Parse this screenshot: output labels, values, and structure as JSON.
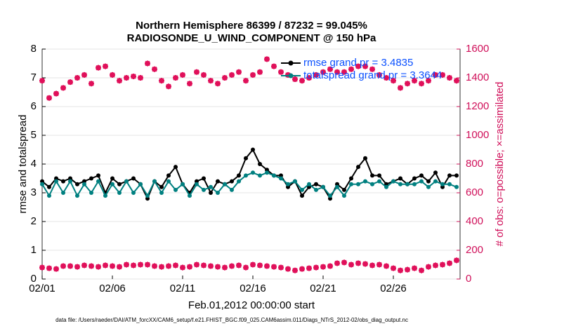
{
  "chart_data": {
    "type": "line",
    "title": "Northern Hemisphere 86399 / 87232 = 99.045%",
    "subtitle": "RADIOSONDE_U_WIND_COMPONENT @ 150 hPa",
    "x_label": "Feb.01,2012 00:00:00 start",
    "y_label": "rmse and totalspread",
    "y2_label": "# of obs: o=possible; ×=assimilated",
    "footer": "data file: /Users/raeder/DAI/ATM_forcXX/CAM6_setup/f.e21.FHIST_BGC.f09_025.CAM6assim.011/Diags_NTrS_2012-02/obs_diag_output.nc",
    "x": [
      0,
      0.5,
      1,
      1.5,
      2,
      2.5,
      3,
      3.5,
      4,
      4.5,
      5,
      5.5,
      6,
      6.5,
      7,
      7.5,
      8,
      8.5,
      9,
      9.5,
      10,
      10.5,
      11,
      11.5,
      12,
      12.5,
      13,
      13.5,
      14,
      14.5,
      15,
      15.5,
      16,
      16.5,
      17,
      17.5,
      18,
      18.5,
      19,
      19.5,
      20,
      20.5,
      21,
      21.5,
      22,
      22.5,
      23,
      23.5,
      24,
      24.5,
      25,
      25.5,
      26,
      26.5,
      27,
      27.5,
      28,
      28.5,
      29,
      29.5
    ],
    "xlim": [
      0,
      29.75
    ],
    "xticks": [
      {
        "value": 0,
        "label": "02/01"
      },
      {
        "value": 5,
        "label": "02/06"
      },
      {
        "value": 10,
        "label": "02/11"
      },
      {
        "value": 15,
        "label": "02/16"
      },
      {
        "value": 20,
        "label": "02/21"
      },
      {
        "value": 25,
        "label": "02/26"
      }
    ],
    "ylim": [
      0,
      8
    ],
    "yticks": [
      0,
      1,
      2,
      3,
      4,
      5,
      6,
      7,
      8
    ],
    "y2lim": [
      0,
      1600
    ],
    "y2ticks": [
      0,
      200,
      400,
      600,
      800,
      1000,
      1200,
      1400,
      1600
    ],
    "grid": true,
    "legend": "upper right",
    "series": [
      {
        "name": "rmse grand pr = 3.4835",
        "color": "#000000",
        "values": [
          3.4,
          3.2,
          3.5,
          3.4,
          3.5,
          3.3,
          3.4,
          3.5,
          3.6,
          3.0,
          3.5,
          3.3,
          3.4,
          3.5,
          3.3,
          2.8,
          3.4,
          3.2,
          3.6,
          3.9,
          3.3,
          3.0,
          3.4,
          3.5,
          3.0,
          3.4,
          3.3,
          3.4,
          3.6,
          4.2,
          4.5,
          4.0,
          3.8,
          3.6,
          3.6,
          3.2,
          3.4,
          2.9,
          3.2,
          3.3,
          3.2,
          2.8,
          3.3,
          3.1,
          3.5,
          3.9,
          4.2,
          3.6,
          3.6,
          3.3,
          3.4,
          3.5,
          3.3,
          3.5,
          3.6,
          3.4,
          3.7,
          3.2,
          3.6,
          3.6
        ]
      },
      {
        "name": "totalspread grand pr = 3.3644",
        "color": "#008080",
        "values": [
          3.3,
          2.9,
          3.4,
          3.0,
          3.4,
          2.9,
          3.3,
          3.0,
          3.4,
          2.9,
          3.3,
          3.0,
          3.4,
          3.0,
          3.3,
          2.9,
          3.4,
          3.0,
          3.4,
          3.1,
          3.3,
          2.9,
          3.3,
          3.1,
          3.2,
          3.0,
          3.3,
          3.1,
          3.4,
          3.6,
          3.7,
          3.6,
          3.7,
          3.6,
          3.5,
          3.3,
          3.4,
          3.1,
          3.3,
          3.1,
          3.2,
          2.9,
          3.2,
          2.9,
          3.3,
          3.3,
          3.4,
          3.3,
          3.4,
          3.2,
          3.4,
          3.3,
          3.3,
          3.3,
          3.4,
          3.2,
          3.4,
          3.3,
          3.3,
          3.2
        ]
      },
      {
        "axis": "y2",
        "color": "#e0105a",
        "values": [
          1380,
          1260,
          1290,
          1330,
          1370,
          1400,
          1420,
          1360,
          1470,
          1480,
          1420,
          1380,
          1400,
          1410,
          1400,
          1500,
          1460,
          1380,
          1340,
          1400,
          1420,
          1360,
          1440,
          1420,
          1380,
          1360,
          1400,
          1420,
          1440,
          1380,
          1420,
          1440,
          1530,
          1480,
          1440,
          1420,
          1390,
          1380,
          1400,
          1420,
          1440,
          1460,
          1440,
          1440,
          1460,
          1480,
          1480,
          1460,
          1420,
          1400,
          1380,
          1330,
          1360,
          1380,
          1360,
          1380,
          1420,
          1420,
          1400,
          1380
        ]
      },
      {
        "axis": "y2",
        "color": "#e0105a",
        "values": [
          80,
          75,
          70,
          90,
          90,
          85,
          95,
          90,
          85,
          95,
          90,
          85,
          100,
          95,
          100,
          100,
          90,
          85,
          90,
          95,
          80,
          85,
          100,
          95,
          90,
          85,
          80,
          90,
          95,
          80,
          100,
          95,
          90,
          85,
          80,
          70,
          60,
          70,
          75,
          80,
          85,
          90,
          110,
          115,
          100,
          110,
          105,
          95,
          100,
          90,
          75,
          60,
          65,
          75,
          60,
          85,
          95,
          100,
          110,
          130
        ]
      }
    ]
  }
}
